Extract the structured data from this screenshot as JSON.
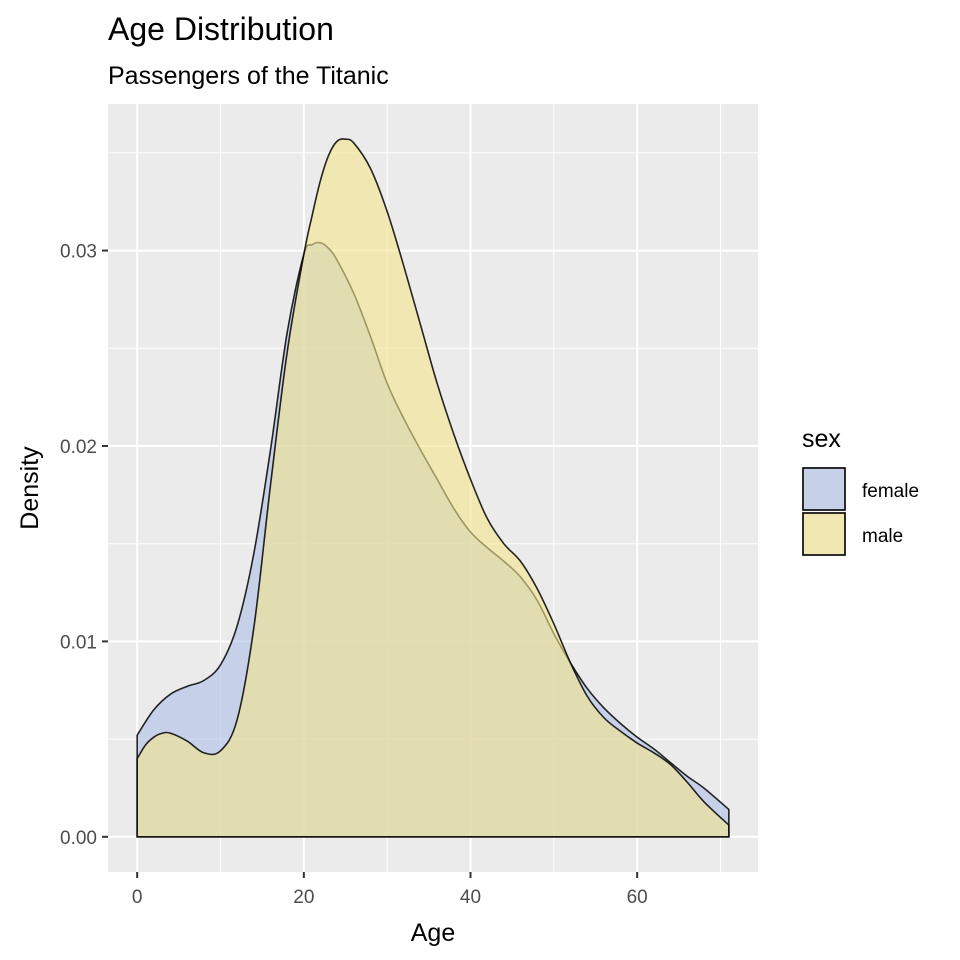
{
  "chart_data": {
    "type": "area",
    "title": "Age Distribution",
    "subtitle": "Passengers of the Titanic",
    "xlabel": "Age",
    "ylabel": "Density",
    "xlim": [
      -3.5,
      74.5
    ],
    "ylim": [
      -0.0018,
      0.0375
    ],
    "x_ticks": [
      0,
      20,
      40,
      60
    ],
    "x_tick_labels": [
      "0",
      "20",
      "40",
      "60"
    ],
    "y_ticks": [
      0.0,
      0.01,
      0.02,
      0.03
    ],
    "y_tick_labels": [
      "0.00",
      "0.01",
      "0.02",
      "0.03"
    ],
    "grid": true,
    "legend": {
      "title": "sex",
      "position": "right"
    },
    "series": [
      {
        "name": "female",
        "color": "#aec0e8",
        "x": [
          0,
          2,
          4,
          6,
          8,
          10,
          12,
          14,
          16,
          18,
          20,
          21,
          22,
          23,
          24,
          26,
          28,
          30,
          32,
          34,
          36,
          38,
          40,
          42,
          44,
          46,
          48,
          50,
          52,
          54,
          56,
          58,
          60,
          62,
          64,
          66,
          68,
          71
        ],
        "values": [
          0.0052,
          0.0065,
          0.0073,
          0.0077,
          0.008,
          0.0088,
          0.0108,
          0.0145,
          0.0198,
          0.0258,
          0.0298,
          0.0303,
          0.0304,
          0.0301,
          0.0295,
          0.0278,
          0.0256,
          0.0232,
          0.0214,
          0.0198,
          0.0183,
          0.0168,
          0.0156,
          0.0148,
          0.0141,
          0.0133,
          0.0121,
          0.0104,
          0.0089,
          0.0076,
          0.0066,
          0.0058,
          0.0051,
          0.0045,
          0.0038,
          0.0031,
          0.0025,
          0.0014
        ]
      },
      {
        "name": "male",
        "color": "#f5e48c",
        "x": [
          0,
          1,
          2,
          3,
          4,
          6,
          8,
          10,
          12,
          14,
          16,
          18,
          20,
          21,
          22,
          23,
          24,
          25,
          26,
          28,
          30,
          32,
          34,
          36,
          38,
          40,
          42,
          44,
          46,
          48,
          50,
          52,
          54,
          56,
          58,
          60,
          62,
          64,
          66,
          68,
          71
        ],
        "values": [
          0.004,
          0.0047,
          0.0051,
          0.0053,
          0.0053,
          0.0049,
          0.0043,
          0.0044,
          0.006,
          0.0107,
          0.018,
          0.0248,
          0.0298,
          0.0318,
          0.0336,
          0.0349,
          0.0356,
          0.0357,
          0.0355,
          0.0342,
          0.032,
          0.0292,
          0.0262,
          0.0232,
          0.0206,
          0.0183,
          0.0163,
          0.015,
          0.0141,
          0.0127,
          0.0109,
          0.0089,
          0.0072,
          0.0061,
          0.0054,
          0.0048,
          0.0043,
          0.0037,
          0.0028,
          0.0018,
          0.0006
        ]
      }
    ]
  }
}
